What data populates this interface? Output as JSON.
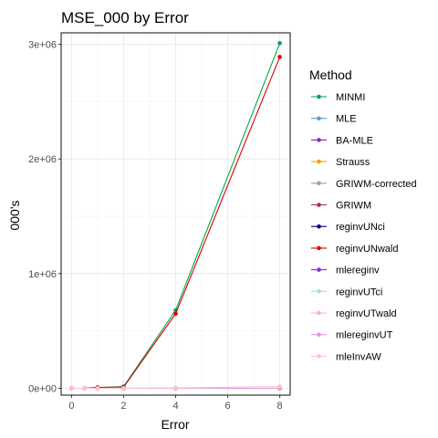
{
  "chart_data": {
    "type": "line",
    "title": "MSE_000 by Error",
    "xlabel": "Error",
    "ylabel": "000's",
    "xlim": [
      -0.4,
      8.4
    ],
    "ylim": [
      -60000,
      3100000
    ],
    "x_ticks": [
      0,
      2,
      4,
      6,
      8
    ],
    "x_tick_labels": [
      "0",
      "2",
      "4",
      "6",
      "8"
    ],
    "y_ticks": [
      0,
      1000000,
      2000000,
      3000000
    ],
    "y_tick_labels": [
      "0e+00",
      "1e+06",
      "2e+06",
      "3e+06"
    ],
    "grid": true,
    "legend_position": "right",
    "legend_title": "Method",
    "series": [
      {
        "name": "MINMI",
        "color": "#00a651",
        "x": [
          0,
          0.5,
          1,
          2,
          4,
          8
        ],
        "y": [
          0,
          0,
          5000,
          15000,
          680000,
          3010000
        ]
      },
      {
        "name": "MLE",
        "color": "#5b9bd5",
        "x": [
          0,
          0.5,
          1,
          2,
          4,
          8
        ],
        "y": [
          0,
          0,
          0,
          0,
          0,
          0
        ]
      },
      {
        "name": "BA-MLE",
        "color": "#7b2fbe",
        "x": [
          0,
          0.5,
          1,
          2,
          4,
          8
        ],
        "y": [
          0,
          0,
          0,
          0,
          0,
          0
        ]
      },
      {
        "name": "Strauss",
        "color": "#f0a000",
        "x": [
          0,
          0.5,
          1,
          2,
          4,
          8
        ],
        "y": [
          0,
          0,
          0,
          0,
          0,
          0
        ]
      },
      {
        "name": "GRIWM-corrected",
        "color": "#a0a0a0",
        "x": [
          0,
          0.5,
          1,
          2,
          4,
          8
        ],
        "y": [
          0,
          0,
          0,
          0,
          0,
          0
        ]
      },
      {
        "name": "GRIWM",
        "color": "#a0304a",
        "x": [
          0,
          0.5,
          1,
          2,
          4,
          8
        ],
        "y": [
          0,
          0,
          0,
          0,
          0,
          0
        ]
      },
      {
        "name": "reginvUNci",
        "color": "#000080",
        "x": [
          0,
          0.5,
          1,
          2,
          4,
          8
        ],
        "y": [
          0,
          0,
          0,
          0,
          0,
          0
        ]
      },
      {
        "name": "reginvUNwald",
        "color": "#e00000",
        "x": [
          0,
          0.5,
          1,
          2,
          4,
          8
        ],
        "y": [
          0,
          0,
          8000,
          10000,
          650000,
          2890000
        ]
      },
      {
        "name": "mlereginv",
        "color": "#8a2be2",
        "x": [
          0,
          0.5,
          1,
          2,
          4,
          8
        ],
        "y": [
          0,
          0,
          0,
          0,
          0,
          0
        ]
      },
      {
        "name": "reginvUTci",
        "color": "#a8dde8",
        "x": [
          0,
          0.5,
          1,
          2,
          4,
          8
        ],
        "y": [
          0,
          0,
          0,
          0,
          0,
          0
        ]
      },
      {
        "name": "reginvUTwald",
        "color": "#f4b6c2",
        "x": [
          0,
          0.5,
          1,
          2,
          4,
          8
        ],
        "y": [
          0,
          0,
          0,
          0,
          0,
          0
        ]
      },
      {
        "name": "mlereginvUT",
        "color": "#dd99dd",
        "x": [
          0,
          0.5,
          1,
          2,
          4,
          8
        ],
        "y": [
          0,
          0,
          0,
          0,
          0,
          0
        ]
      },
      {
        "name": "mleInvAW",
        "color": "#ffc0cb",
        "x": [
          0,
          0.5,
          1,
          2,
          4,
          8
        ],
        "y": [
          0,
          0,
          0,
          1000,
          3000,
          15000
        ]
      }
    ]
  }
}
